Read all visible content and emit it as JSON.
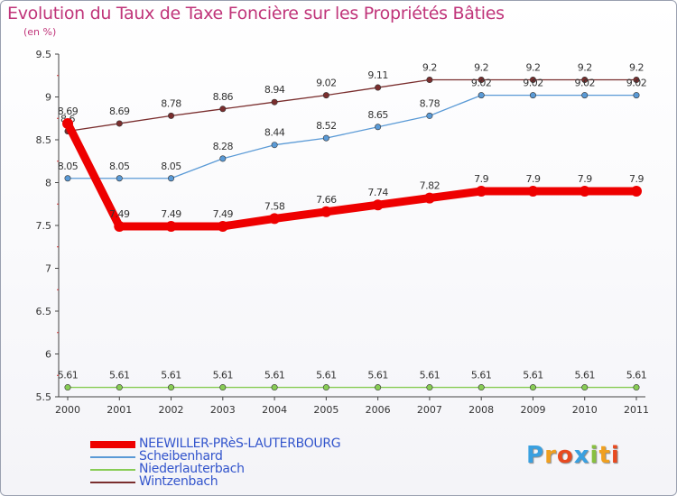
{
  "chart_data": {
    "type": "line",
    "title": "Evolution du Taux de Taxe Foncière sur les Propriétés Bâties",
    "subtitle": "(en %)",
    "x": [
      "2000",
      "2001",
      "2002",
      "2003",
      "2004",
      "2005",
      "2006",
      "2007",
      "2008",
      "2009",
      "2010",
      "2011"
    ],
    "ylim": [
      5.5,
      9.5
    ],
    "yticks": [
      "5.5",
      "6",
      "6.5",
      "7",
      "7.5",
      "8",
      "8.5",
      "9",
      "9.5"
    ],
    "grid": false,
    "legend_position": "bottom-left",
    "series": [
      {
        "name": "Wintzenbach",
        "color": "#7a2e2e",
        "values": [
          8.6,
          8.69,
          8.78,
          8.86,
          8.94,
          9.02,
          9.11,
          9.2,
          9.2,
          9.2,
          9.2,
          9.2
        ],
        "labels": [
          "8.6",
          "8.69",
          "8.78",
          "8.86",
          "8.94",
          "9.02",
          "9.11",
          "9.2",
          "9.2",
          "9.2",
          "9.2",
          "9.2"
        ]
      },
      {
        "name": "Scheibenhard",
        "color": "#5a9ad6",
        "values": [
          8.05,
          8.05,
          8.05,
          8.28,
          8.44,
          8.52,
          8.65,
          8.78,
          9.02,
          9.02,
          9.02,
          9.02
        ],
        "labels": [
          "8.05",
          "8.05",
          "8.05",
          "8.28",
          "8.44",
          "8.52",
          "8.65",
          "8.78",
          "9.02",
          "9.02",
          "9.02",
          "9.02"
        ]
      },
      {
        "name": "Niederlauterbach",
        "color": "#88cc55",
        "values": [
          5.61,
          5.61,
          5.61,
          5.61,
          5.61,
          5.61,
          5.61,
          5.61,
          5.61,
          5.61,
          5.61,
          5.61
        ],
        "labels": [
          "5.61",
          "5.61",
          "5.61",
          "5.61",
          "5.61",
          "5.61",
          "5.61",
          "5.61",
          "5.61",
          "5.61",
          "5.61",
          "5.61"
        ]
      },
      {
        "name": "NEEWILLER-PRèS-LAUTERBOURG",
        "color": "#ee0000",
        "values": [
          8.69,
          7.49,
          7.49,
          7.49,
          7.58,
          7.66,
          7.74,
          7.82,
          7.9,
          7.9,
          7.9,
          7.9
        ],
        "labels": [
          "8.69",
          "7.49",
          "7.49",
          "7.49",
          "7.58",
          "7.66",
          "7.74",
          "7.82",
          "7.9",
          "7.9",
          "7.9",
          "7.9"
        ]
      }
    ],
    "legend": [
      {
        "name": "NEEWILLER-PRèS-LAUTERBOURG",
        "color": "#ee0000",
        "thick": true
      },
      {
        "name": "Scheibenhard",
        "color": "#5a9ad6",
        "thick": false
      },
      {
        "name": "Niederlauterbach",
        "color": "#88cc55",
        "thick": false
      },
      {
        "name": "Wintzenbach",
        "color": "#7a2e2e",
        "thick": false
      }
    ]
  },
  "logo": {
    "letters": [
      "P",
      "r",
      "o",
      "x",
      "i",
      "t",
      "i"
    ],
    "colors": [
      "#3aa0e0",
      "#f0a020",
      "#e84a20",
      "#3aa0e0",
      "#88c040",
      "#f0a020",
      "#e84a20"
    ]
  }
}
